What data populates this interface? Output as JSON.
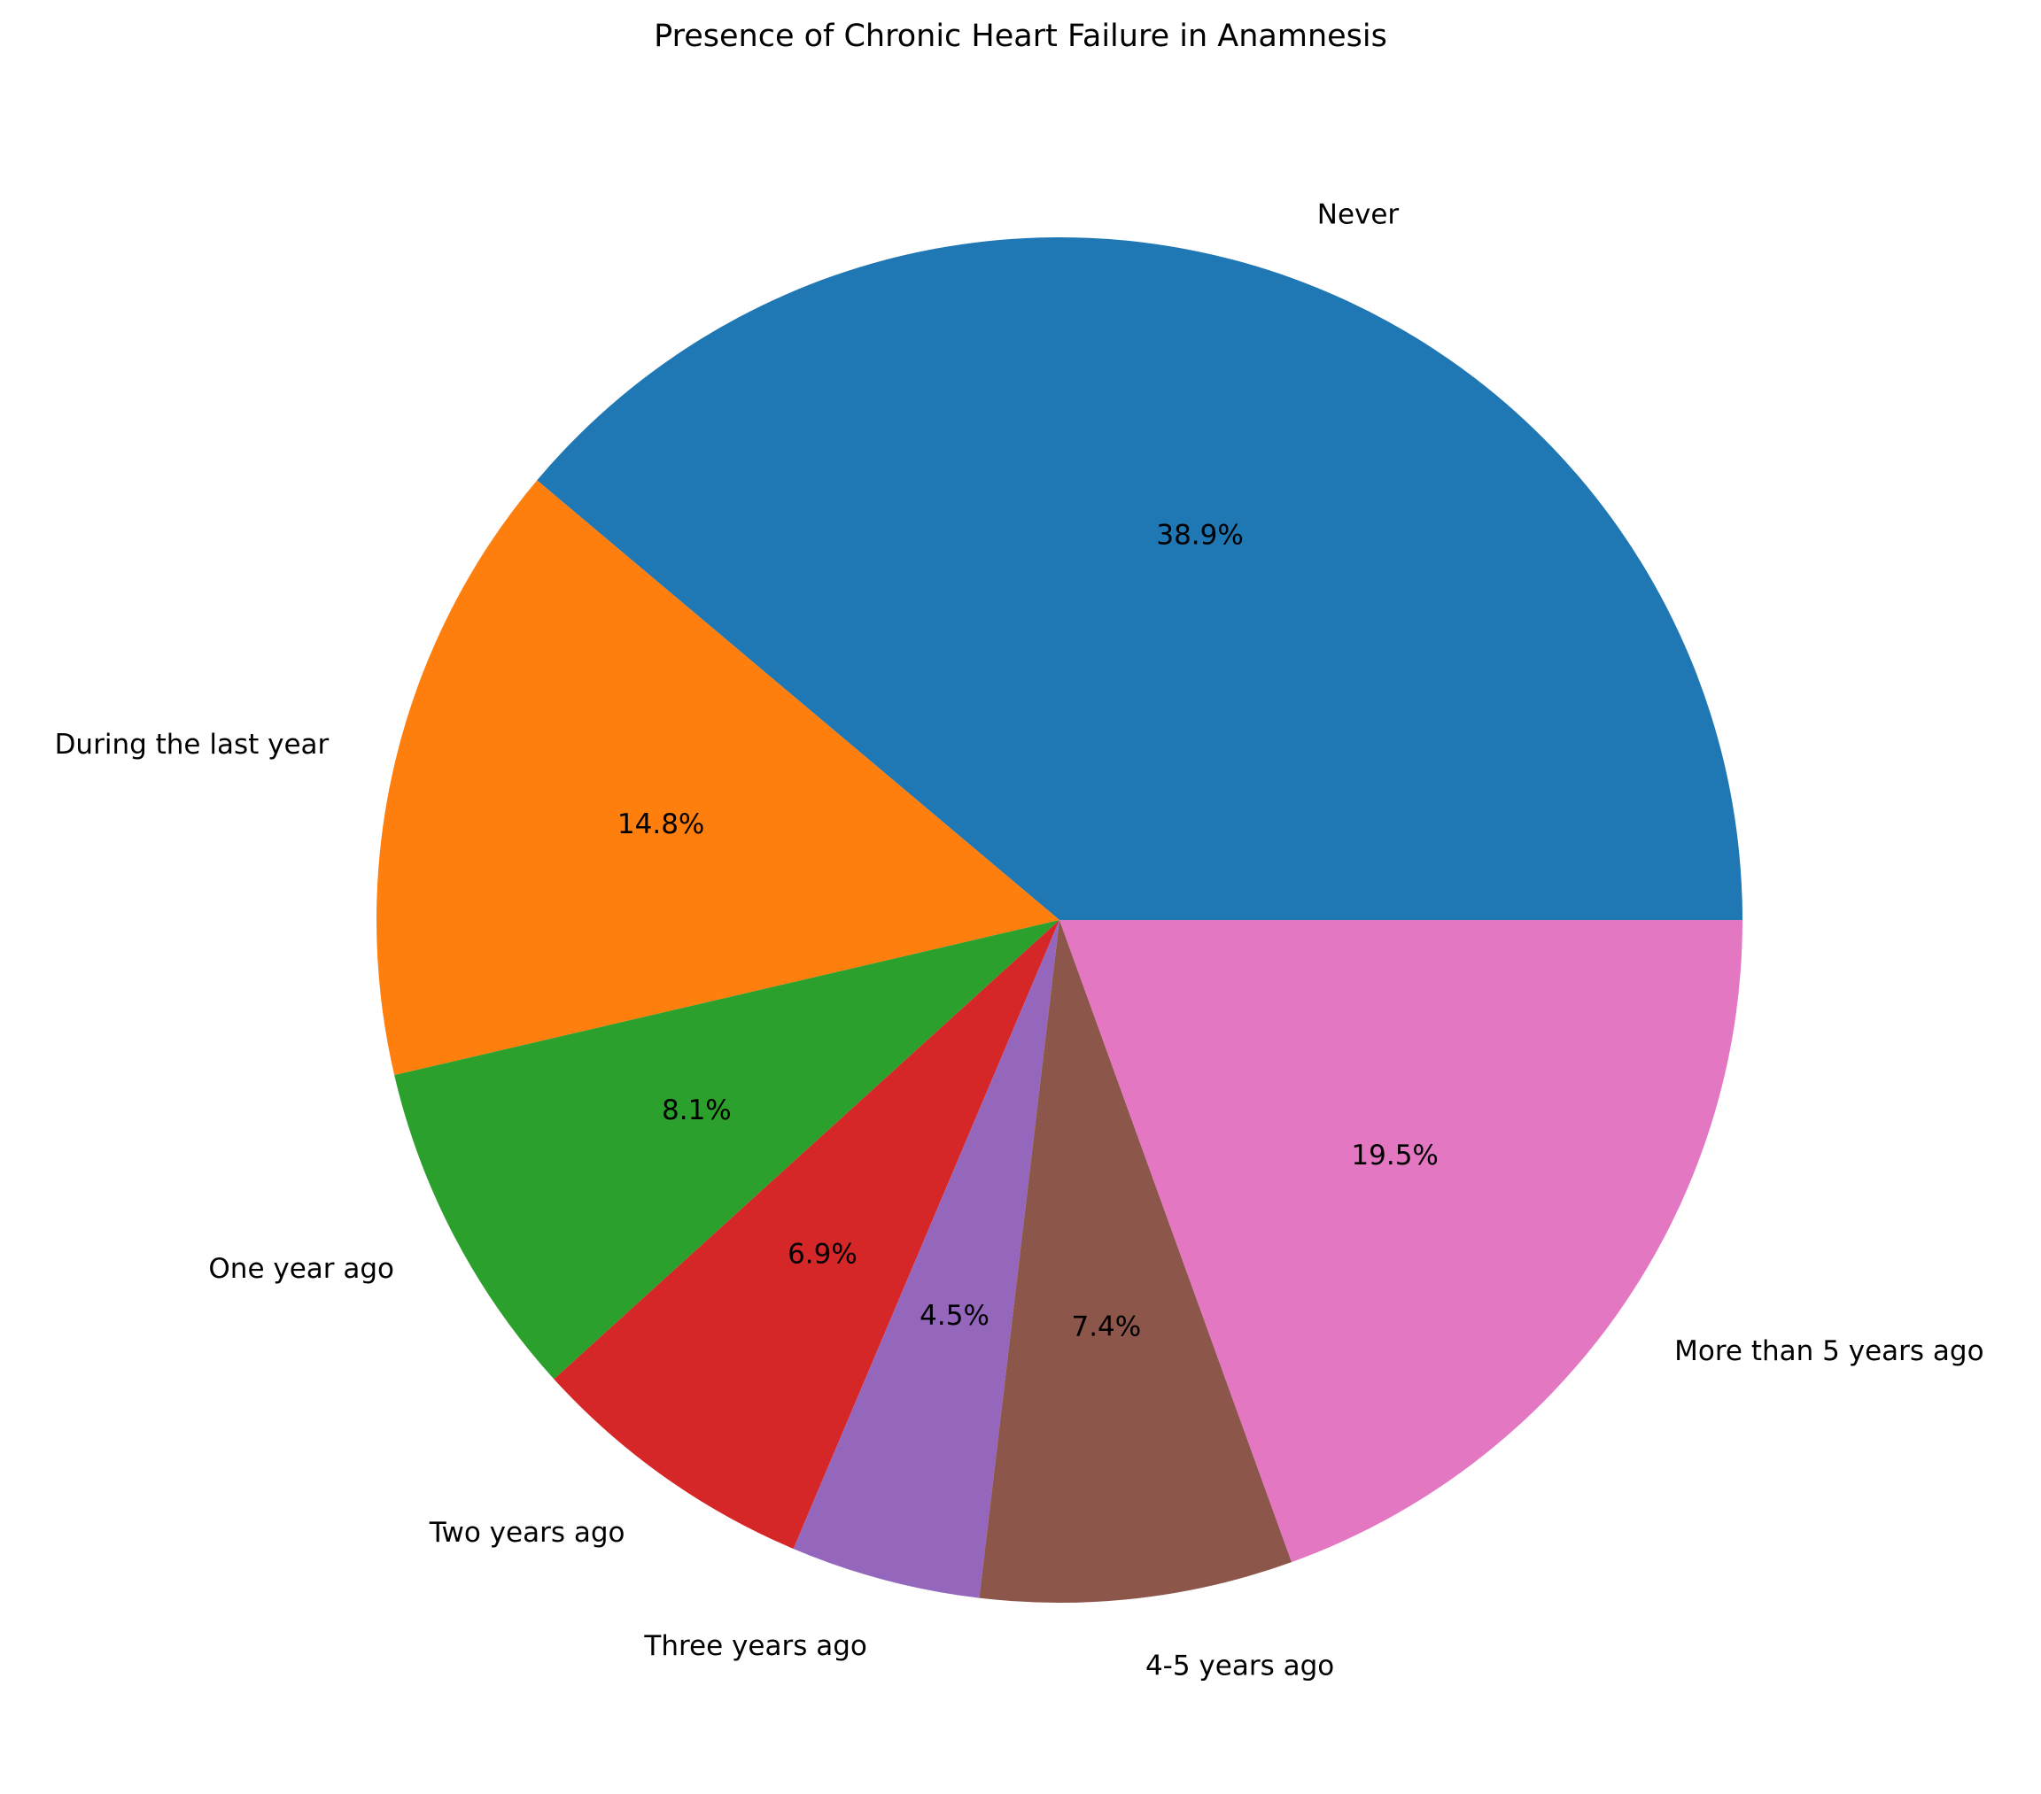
{
  "chart_data": {
    "type": "pie",
    "title": "Presence of Chronic Heart Failure in Anamnesis",
    "start_angle_deg": 0,
    "direction": "counterclockwise",
    "slices": [
      {
        "label": "Never",
        "value": 38.9,
        "pct_label": "38.9%",
        "color": "#1f77b4"
      },
      {
        "label": "During the last year",
        "value": 14.8,
        "pct_label": "14.8%",
        "color": "#ff7f0e"
      },
      {
        "label": "One year ago",
        "value": 8.1,
        "pct_label": "8.1%",
        "color": "#2ca02c"
      },
      {
        "label": "Two years ago",
        "value": 6.9,
        "pct_label": "6.9%",
        "color": "#d62728"
      },
      {
        "label": "Three years ago",
        "value": 4.5,
        "pct_label": "4.5%",
        "color": "#9467bd"
      },
      {
        "label": "4-5 years ago",
        "value": 7.4,
        "pct_label": "7.4%",
        "color": "#8c564b"
      },
      {
        "label": "More than 5 years ago",
        "value": 19.5,
        "pct_label": "19.5%",
        "color": "#e377c2"
      }
    ]
  }
}
